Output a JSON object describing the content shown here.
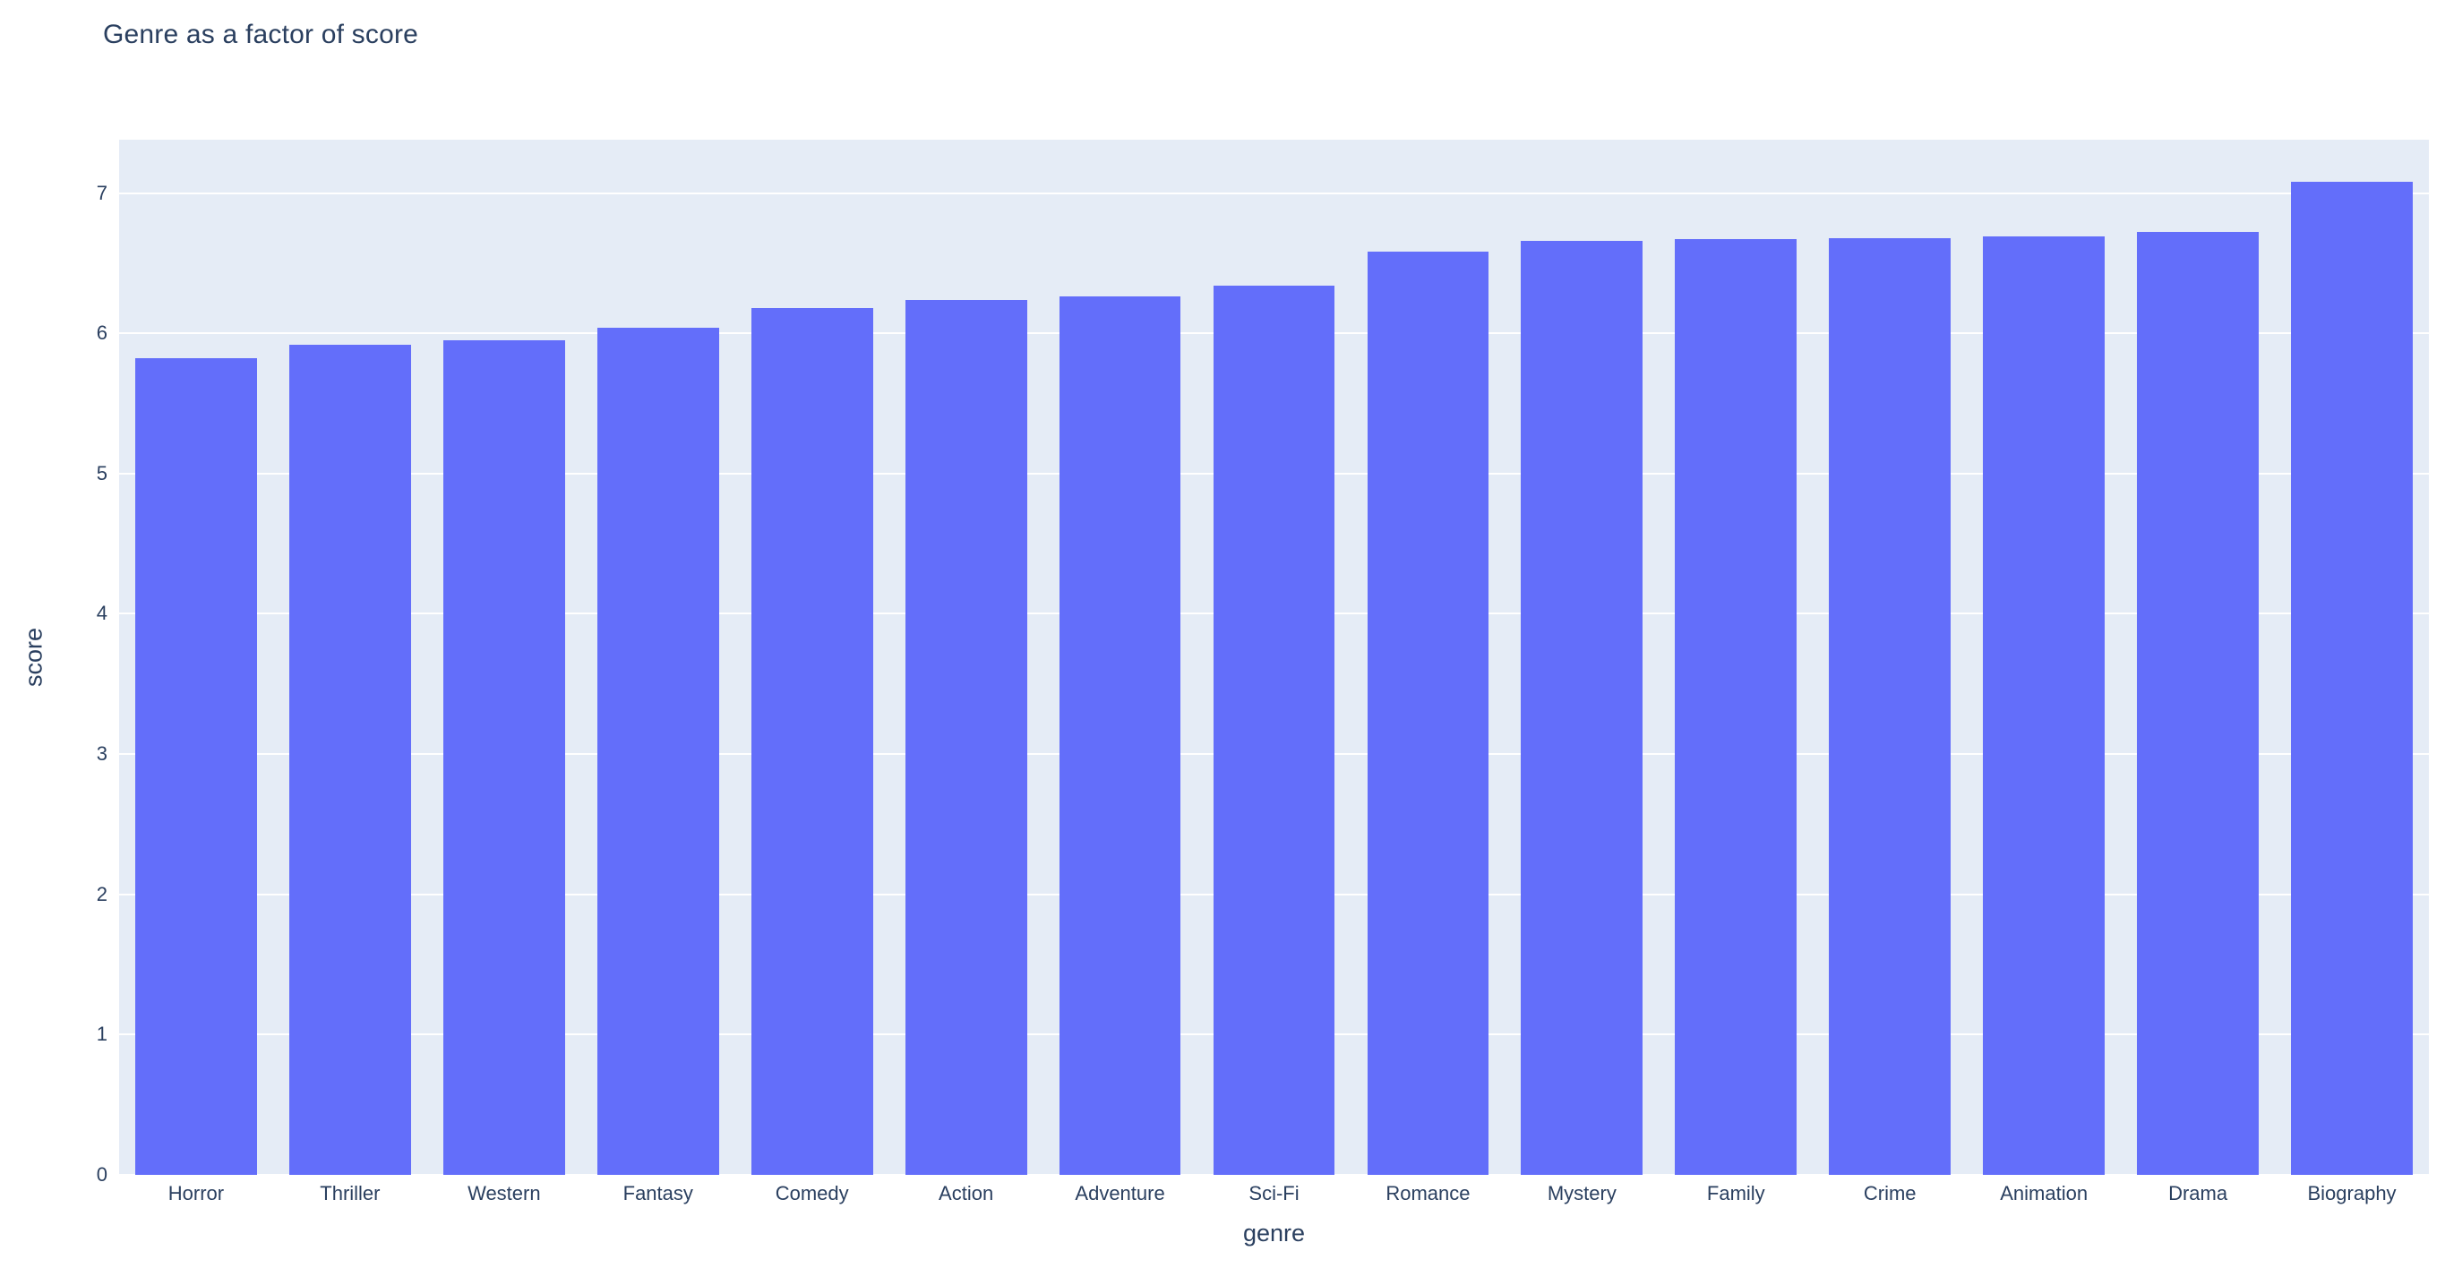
{
  "chart_data": {
    "type": "bar",
    "title": "Genre as a factor of score",
    "xlabel": "genre",
    "ylabel": "score",
    "categories": [
      "Horror",
      "Thriller",
      "Western",
      "Fantasy",
      "Comedy",
      "Action",
      "Adventure",
      "Sci-Fi",
      "Romance",
      "Mystery",
      "Family",
      "Crime",
      "Animation",
      "Drama",
      "Biography"
    ],
    "values": [
      5.82,
      5.92,
      5.95,
      6.04,
      6.18,
      6.24,
      6.26,
      6.34,
      6.58,
      6.66,
      6.67,
      6.68,
      6.69,
      6.72,
      7.08
    ],
    "ylim": [
      0,
      7.38
    ],
    "yticks": [
      0,
      1,
      2,
      3,
      4,
      5,
      6,
      7
    ],
    "grid": true,
    "legend": false,
    "bar_gap_fraction": 0.21,
    "colors": {
      "bar": "#636efa",
      "plot_bg": "#e5ecf6",
      "grid": "#ffffff",
      "text": "#2a3f5f",
      "page_bg": "#ffffff"
    }
  }
}
